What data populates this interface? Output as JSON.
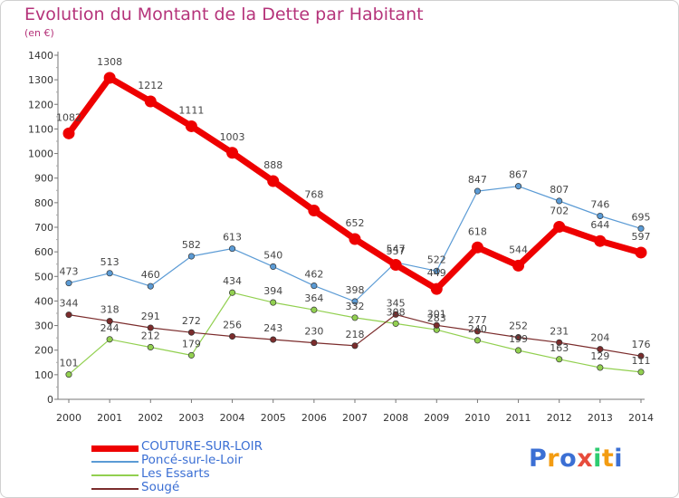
{
  "title": "Evolution du Montant de la Dette par Habitant",
  "subtitle": "(en €)",
  "logo": {
    "text": "Proxiti",
    "colors": [
      "#3b6fd4",
      "#f39c12",
      "#3b6fd4",
      "#e74c3c",
      "#2ecc71",
      "#f39c12",
      "#3b6fd4"
    ]
  },
  "chart_data": {
    "type": "line",
    "x": [
      "2000",
      "2001",
      "2002",
      "2003",
      "2004",
      "2005",
      "2006",
      "2007",
      "2008",
      "2009",
      "2010",
      "2011",
      "2012",
      "2013",
      "2014"
    ],
    "ylim": [
      0,
      1400
    ],
    "yticks": [
      0,
      100,
      200,
      300,
      400,
      500,
      600,
      700,
      800,
      900,
      1000,
      1100,
      1200,
      1300,
      1400
    ],
    "grid": false,
    "legend_position": "bottom-left",
    "series": [
      {
        "name": "COUTURE-SUR-LOIR",
        "color": "#ee0000",
        "width": 7,
        "marker": 6.5,
        "values": [
          1082,
          1308,
          1212,
          1111,
          1003,
          888,
          768,
          652,
          547,
          449,
          618,
          544,
          702,
          644,
          597
        ]
      },
      {
        "name": "Poncé-sur-le-Loir",
        "color": "#5b9bd5",
        "width": 1.2,
        "marker": 3.2,
        "values": [
          473,
          513,
          460,
          582,
          613,
          540,
          462,
          398,
          557,
          522,
          847,
          867,
          807,
          746,
          695
        ]
      },
      {
        "name": "Les Essarts",
        "color": "#92d050",
        "width": 1.2,
        "marker": 3.2,
        "values": [
          101,
          244,
          212,
          179,
          434,
          394,
          364,
          332,
          308,
          283,
          240,
          199,
          163,
          129,
          111
        ]
      },
      {
        "name": "Sougé",
        "color": "#7b2c2c",
        "width": 1.2,
        "marker": 3.2,
        "values": [
          344,
          318,
          291,
          272,
          256,
          243,
          230,
          218,
          345,
          301,
          277,
          252,
          231,
          204,
          176
        ]
      }
    ]
  }
}
